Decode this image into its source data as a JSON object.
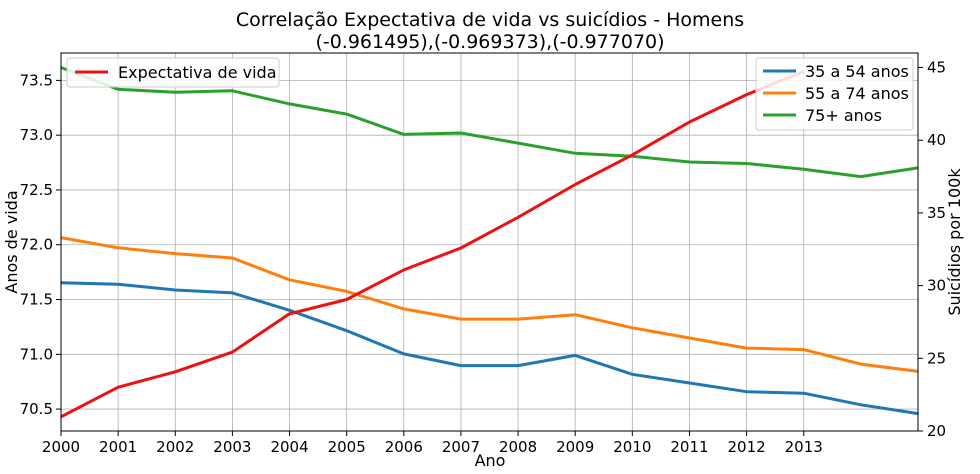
{
  "chart_data": {
    "type": "line",
    "title": "Correlação Expectativa de vida vs suicídios - Homens",
    "subtitle": "(-0.961495),(-0.969373),(-0.977070)",
    "xlabel": "Ano",
    "ylabel_left": "Anos de vida",
    "ylabel_right": "Suicídios por 100k",
    "x_ticks": [
      "2000",
      "2001",
      "2002",
      "2003",
      "2004",
      "2005",
      "2006",
      "2007",
      "2008",
      "2009",
      "2010",
      "2011",
      "2012",
      "2013"
    ],
    "xlim": [
      2000,
      2015
    ],
    "ylim_left": [
      70.3,
      73.75
    ],
    "ylim_right": [
      20,
      46
    ],
    "y_ticks_left": [
      "70.5",
      "71.0",
      "71.5",
      "72.0",
      "72.5",
      "73.0",
      "73.5"
    ],
    "y_ticks_right": [
      "20",
      "25",
      "30",
      "35",
      "40",
      "45"
    ],
    "grid": true,
    "left_series": [
      {
        "name": "Expectativa de vida",
        "color": "#ee1111",
        "x": [
          2000,
          2001,
          2002,
          2003,
          2004,
          2005,
          2006,
          2007,
          2008,
          2009,
          2010,
          2011,
          2012,
          2013
        ],
        "values": [
          70.43,
          70.7,
          70.84,
          71.02,
          71.37,
          71.5,
          71.77,
          71.97,
          72.25,
          72.55,
          72.82,
          73.12,
          73.37,
          73.58
        ]
      }
    ],
    "right_series": [
      {
        "name": "35 a 54 anos",
        "color": "#1f77b4",
        "x": [
          2000,
          2001,
          2002,
          2003,
          2004,
          2005,
          2006,
          2007,
          2008,
          2009,
          2010,
          2011,
          2012,
          2013,
          2014,
          2015
        ],
        "values": [
          30.2,
          30.1,
          29.7,
          29.5,
          28.3,
          26.9,
          25.3,
          24.5,
          24.5,
          25.2,
          23.9,
          23.3,
          22.7,
          22.6,
          21.8,
          21.2
        ]
      },
      {
        "name": "55 a 74 anos",
        "color": "#ff7f0e",
        "x": [
          2000,
          2001,
          2002,
          2003,
          2004,
          2005,
          2006,
          2007,
          2008,
          2009,
          2010,
          2011,
          2012,
          2013,
          2014,
          2015
        ],
        "values": [
          33.3,
          32.6,
          32.2,
          31.9,
          30.4,
          29.6,
          28.4,
          27.7,
          27.7,
          28.0,
          27.1,
          26.4,
          25.7,
          25.6,
          24.6,
          24.1
        ]
      },
      {
        "name": "75+ anos",
        "color": "#2ca02c",
        "x": [
          2000,
          2001,
          2002,
          2003,
          2004,
          2005,
          2006,
          2007,
          2008,
          2009,
          2010,
          2011,
          2012,
          2013,
          2014,
          2015
        ],
        "values": [
          45.0,
          43.5,
          43.3,
          43.4,
          42.5,
          41.8,
          40.4,
          40.5,
          39.8,
          39.1,
          38.9,
          38.5,
          38.4,
          38.0,
          37.5,
          38.1
        ]
      }
    ],
    "legend_left_position": "top-left",
    "legend_right_position": "top-right"
  }
}
